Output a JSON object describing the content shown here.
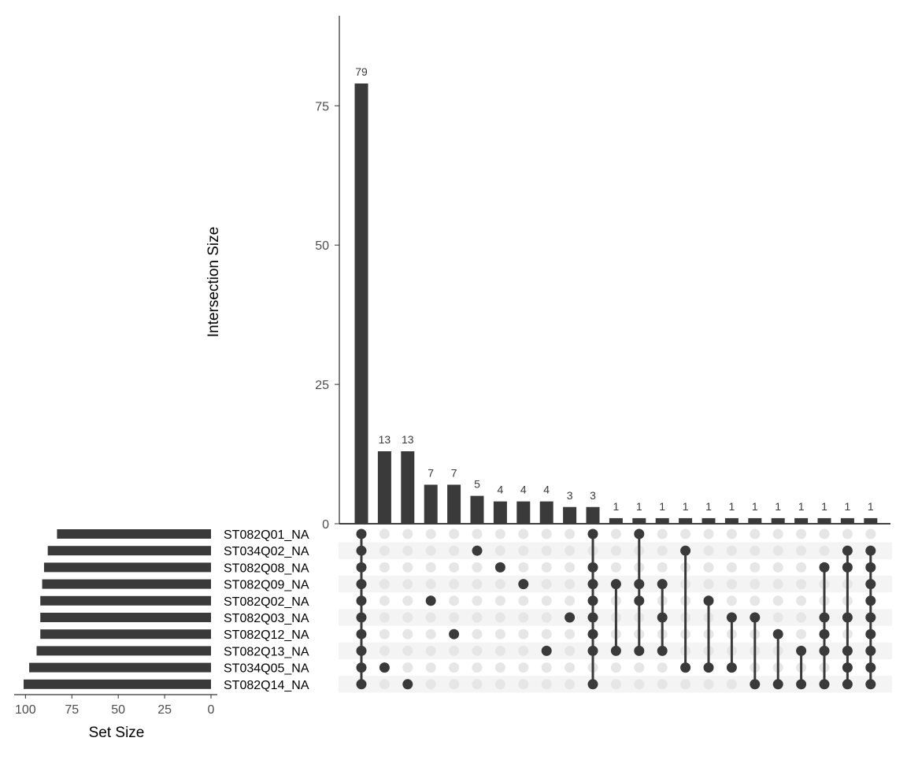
{
  "chart_data": {
    "type": "upset",
    "ylabel": "Intersection Size",
    "set_size_label": "Set Size",
    "y_ticks": [
      0,
      25,
      50,
      75
    ],
    "ylim": [
      0,
      90
    ],
    "set_size_ticks": [
      100,
      75,
      50,
      25,
      0
    ],
    "set_size_lim": [
      0,
      101
    ],
    "sets": [
      {
        "name": "ST082Q01_NA",
        "size": 83
      },
      {
        "name": "ST034Q02_NA",
        "size": 88
      },
      {
        "name": "ST082Q08_NA",
        "size": 90
      },
      {
        "name": "ST082Q09_NA",
        "size": 91
      },
      {
        "name": "ST082Q02_NA",
        "size": 92
      },
      {
        "name": "ST082Q03_NA",
        "size": 92
      },
      {
        "name": "ST082Q12_NA",
        "size": 92
      },
      {
        "name": "ST082Q13_NA",
        "size": 94
      },
      {
        "name": "ST034Q05_NA",
        "size": 98
      },
      {
        "name": "ST082Q14_NA",
        "size": 101
      }
    ],
    "intersections": [
      {
        "size": 79,
        "sets": [
          0,
          1,
          2,
          3,
          4,
          5,
          6,
          7,
          8,
          9
        ]
      },
      {
        "size": 13,
        "sets": [
          8
        ]
      },
      {
        "size": 13,
        "sets": [
          9
        ]
      },
      {
        "size": 7,
        "sets": [
          4
        ]
      },
      {
        "size": 7,
        "sets": [
          6
        ]
      },
      {
        "size": 5,
        "sets": [
          1
        ]
      },
      {
        "size": 4,
        "sets": [
          2
        ]
      },
      {
        "size": 4,
        "sets": [
          3
        ]
      },
      {
        "size": 4,
        "sets": [
          7
        ]
      },
      {
        "size": 3,
        "sets": [
          5
        ]
      },
      {
        "size": 3,
        "sets": [
          0,
          2,
          3,
          4,
          5,
          6,
          7,
          9
        ]
      },
      {
        "size": 1,
        "sets": [
          3,
          7
        ]
      },
      {
        "size": 1,
        "sets": [
          0,
          3,
          4,
          7
        ]
      },
      {
        "size": 1,
        "sets": [
          3,
          5,
          7
        ]
      },
      {
        "size": 1,
        "sets": [
          1,
          8
        ]
      },
      {
        "size": 1,
        "sets": [
          4,
          8
        ]
      },
      {
        "size": 1,
        "sets": [
          5,
          8
        ]
      },
      {
        "size": 1,
        "sets": [
          5,
          9
        ]
      },
      {
        "size": 1,
        "sets": [
          6,
          9
        ]
      },
      {
        "size": 1,
        "sets": [
          7,
          9
        ]
      },
      {
        "size": 1,
        "sets": [
          2,
          5,
          6,
          7,
          9
        ]
      },
      {
        "size": 1,
        "sets": [
          1,
          2,
          5,
          7,
          8,
          9
        ]
      },
      {
        "size": 1,
        "sets": [
          1,
          2,
          3,
          4,
          5,
          6,
          7,
          8,
          9
        ]
      }
    ],
    "colors": {
      "bar": "#3a3a3a",
      "dot_active": "#3a3a3a",
      "dot_inactive": "#e6e6e6",
      "stripe": "#f4f4f4"
    }
  }
}
